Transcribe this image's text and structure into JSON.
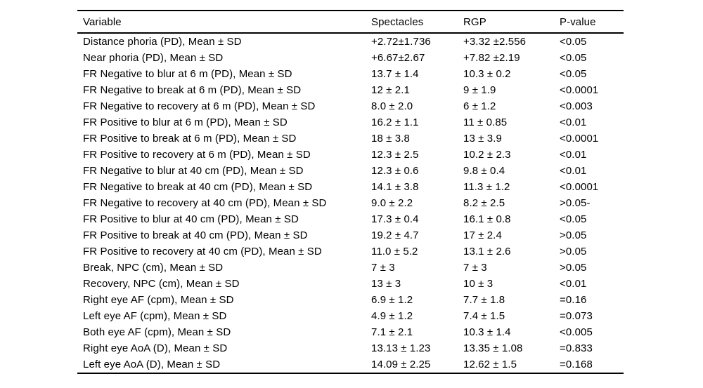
{
  "table": {
    "columns": [
      "Variable",
      "Spectacles",
      "RGP",
      "P-value"
    ],
    "rows": [
      {
        "variable": "Distance phoria (PD), Mean ± SD",
        "spectacles": "+2.72±1.736",
        "rgp": "+3.32 ±2.556",
        "p_value": "<0.05"
      },
      {
        "variable": "Near phoria (PD), Mean ± SD",
        "spectacles": "+6.67±2.67",
        "rgp": "+7.82 ±2.19",
        "p_value": "<0.05"
      },
      {
        "variable": "FR Negative to blur at 6 m (PD), Mean ± SD",
        "spectacles": "13.7 ± 1.4",
        "rgp": "10.3 ± 0.2",
        "p_value": "<0.05"
      },
      {
        "variable": "FR Negative to break at 6 m (PD), Mean ± SD",
        "spectacles": "12 ± 2.1",
        "rgp": "9 ± 1.9",
        "p_value": "<0.0001"
      },
      {
        "variable": "FR Negative to recovery at 6 m (PD), Mean ± SD",
        "spectacles": "8.0 ± 2.0",
        "rgp": "6 ± 1.2",
        "p_value": "<0.003"
      },
      {
        "variable": "FR Positive to blur at 6 m (PD), Mean ± SD",
        "spectacles": "16.2 ± 1.1",
        "rgp": "11 ± 0.85",
        "p_value": "<0.01"
      },
      {
        "variable": "FR Positive to break at 6 m (PD), Mean ± SD",
        "spectacles": "18 ± 3.8",
        "rgp": "13 ± 3.9",
        "p_value": "<0.0001"
      },
      {
        "variable": "FR Positive to recovery at 6 m (PD), Mean ± SD",
        "spectacles": "12.3 ± 2.5",
        "rgp": "10.2 ± 2.3",
        "p_value": "<0.01"
      },
      {
        "variable": "FR Negative to blur at 40 cm (PD), Mean ± SD",
        "spectacles": "12.3 ± 0.6",
        "rgp": "9.8 ± 0.4",
        "p_value": "<0.01"
      },
      {
        "variable": "FR Negative to break at 40 cm (PD), Mean ± SD",
        "spectacles": "14.1 ± 3.8",
        "rgp": "11.3 ± 1.2",
        "p_value": "<0.0001"
      },
      {
        "variable": "FR Negative to recovery at 40 cm (PD), Mean ± SD",
        "spectacles": "9.0 ± 2.2",
        "rgp": "8.2 ± 2.5",
        "p_value": ">0.05-"
      },
      {
        "variable": "FR Positive to blur at 40 cm (PD), Mean ± SD",
        "spectacles": "17.3 ± 0.4",
        "rgp": "16.1 ± 0.8",
        "p_value": "<0.05"
      },
      {
        "variable": "FR Positive to break at 40 cm (PD), Mean ± SD",
        "spectacles": "19.2 ± 4.7",
        "rgp": "17 ± 2.4",
        "p_value": ">0.05"
      },
      {
        "variable": "FR Positive to recovery at 40 cm (PD), Mean ± SD",
        "spectacles": "11.0 ± 5.2",
        "rgp": "13.1 ± 2.6",
        "p_value": ">0.05"
      },
      {
        "variable": "Break, NPC (cm), Mean ± SD",
        "spectacles": "7 ± 3",
        "rgp": "7 ± 3",
        "p_value": ">0.05"
      },
      {
        "variable": "Recovery, NPC (cm), Mean ± SD",
        "spectacles": "13 ± 3",
        "rgp": "10 ± 3",
        "p_value": "<0.01"
      },
      {
        "variable": "Right eye AF (cpm), Mean ± SD",
        "spectacles": "6.9 ± 1.2",
        "rgp": "7.7 ± 1.8",
        "p_value": "=0.16"
      },
      {
        "variable": "Left eye AF (cpm), Mean ± SD",
        "spectacles": "4.9 ± 1.2",
        "rgp": "7.4 ± 1.5",
        "p_value": "=0.073"
      },
      {
        "variable": "Both eye AF (cpm), Mean ± SD",
        "spectacles": "7.1 ± 2.1",
        "rgp": "10.3 ± 1.4",
        "p_value": "<0.005"
      },
      {
        "variable": "Right eye AoA (D), Mean ± SD",
        "spectacles": "13.13 ± 1.23",
        "rgp": "13.35 ± 1.08",
        "p_value": "=0.833"
      },
      {
        "variable": "Left eye AoA (D), Mean ± SD",
        "spectacles": "14.09 ± 2.25",
        "rgp": "12.62 ± 1.5",
        "p_value": "=0.168"
      }
    ]
  },
  "colors": {
    "text": "#000000",
    "background": "#ffffff",
    "rule": "#000000"
  }
}
